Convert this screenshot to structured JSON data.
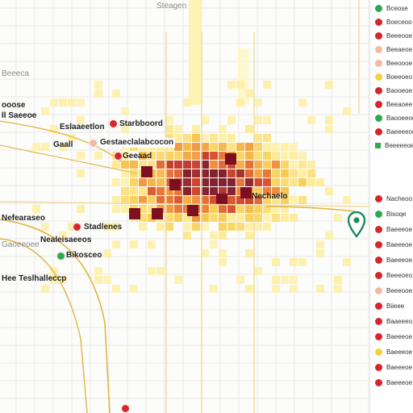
{
  "colors": {
    "background": "#fcfcfb",
    "grid": "#e9e9e9",
    "heat_low": "#fdf4b0",
    "heat_mid": "#f7c945",
    "heat_high": "#e8632a",
    "heat_peak": "#7d1020",
    "road": "#e2b440",
    "pin_red": "#d7262b",
    "pin_green": "#2fa84f",
    "pin_peach": "#f3b9a6",
    "pin_yellow": "#f4d23a",
    "marker_green": "#1e8c5a"
  },
  "map_labels": {
    "l1": "Starbboord",
    "l2": "Eslaaeetlon",
    "l3": "Gaall",
    "l4": "Gestaeclalabcocon",
    "l5": "Geeaad",
    "l6": "Nefearaseo",
    "l7": "Stadlenes",
    "l8": "Nealeisaeeos",
    "l9": "Bikosceo",
    "l10": "Hee Teslhalleccp",
    "l11": "Nechaelo",
    "l12": "Steagen",
    "l13": "ooose",
    "l14": "ll Saeeoe",
    "l15": "Beeeca",
    "l16": "Gaoeeoee"
  },
  "markers": [
    {
      "name": "marker-starbboord",
      "color": "red"
    },
    {
      "name": "marker-gestaeclalabcocon",
      "color": "peach"
    },
    {
      "name": "marker-geeaad",
      "color": "red"
    },
    {
      "name": "marker-stadlenes",
      "color": "red"
    },
    {
      "name": "marker-bikosceo",
      "color": "green"
    },
    {
      "name": "marker-bottom",
      "color": "red"
    }
  ],
  "location_marker": {
    "icon": "location-pin-icon"
  },
  "legend": {
    "items": [
      {
        "color": "green",
        "label": "Bceose"
      },
      {
        "color": "red",
        "label": "Boeceoo"
      },
      {
        "color": "red",
        "label": "Beeeooe"
      },
      {
        "color": "peach",
        "label": "Beeaeoe"
      },
      {
        "color": "peach",
        "label": "Beeoooe"
      },
      {
        "color": "yellow",
        "label": "Boeeoeo"
      },
      {
        "color": "red",
        "label": "Baooeoe"
      },
      {
        "color": "red",
        "label": "Beeaoee"
      },
      {
        "color": "green",
        "label": "Baooeeoe"
      },
      {
        "color": "red",
        "label": "Baeeeeoe"
      },
      {
        "color": "green-sq",
        "label": "Beeeeeoe"
      },
      {
        "color": "red",
        "label": "Nacheoo"
      },
      {
        "color": "green",
        "label": "Bisoqe"
      },
      {
        "color": "red",
        "label": "Baeeeoe"
      },
      {
        "color": "red",
        "label": "Baeeeoe"
      },
      {
        "color": "red",
        "label": "Baeeeoe"
      },
      {
        "color": "red",
        "label": "Beeeoeo"
      },
      {
        "color": "peach",
        "label": "Beeeooe"
      },
      {
        "color": "red",
        "label": "Biieee"
      },
      {
        "color": "red",
        "label": "Baaeeeo"
      },
      {
        "color": "red",
        "label": "Baeeeoe"
      },
      {
        "color": "yellow",
        "label": "Baeeeoe"
      },
      {
        "color": "red",
        "label": "Baeeeoe"
      },
      {
        "color": "red",
        "label": "Baeeeoe"
      }
    ]
  }
}
